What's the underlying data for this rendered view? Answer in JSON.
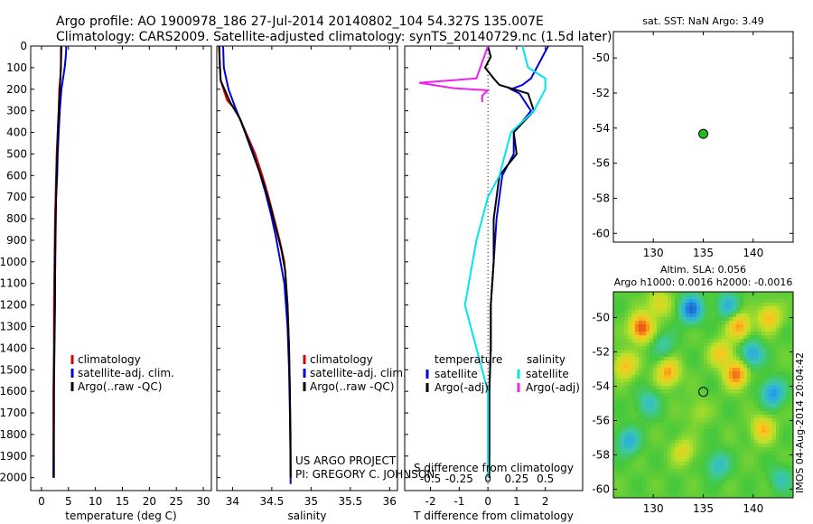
{
  "header": {
    "line1": "Argo profile: AO 1900978_186 27-Jul-2014 20140802_104 54.327S 135.007E",
    "line2": "Climatology: CARS2009. Satellite-adjusted climatology: synTS_20140729.nc (1.5d later)"
  },
  "side_stamp": "IMOS 04-Aug-2014 20:04:42",
  "credit": {
    "line1": "US ARGO PROJECT",
    "line2": "PI: GREGORY C. JOHNSON"
  },
  "colors": {
    "red": "#dd0000",
    "blue": "#0000dd",
    "black": "#000000",
    "cyan": "#00e5ee",
    "magenta": "#ee22ee",
    "green_dot": "#22bb22"
  },
  "chart_data": [
    {
      "id": "temperature",
      "type": "line",
      "xlabel": "temperature (deg C)",
      "ylabel": "",
      "xlim": [
        -2,
        31.5
      ],
      "ylim": [
        2060,
        0
      ],
      "xticks": [
        0,
        5,
        10,
        15,
        20,
        25,
        30
      ],
      "yticks": [
        0,
        100,
        200,
        300,
        400,
        500,
        600,
        700,
        800,
        900,
        1000,
        1100,
        1200,
        1300,
        1400,
        1500,
        1600,
        1700,
        1800,
        1900,
        2000
      ],
      "legend": {
        "placement": "lower-middle",
        "entries": [
          {
            "label": "climatology",
            "color": "#dd0000"
          },
          {
            "label": "satellite-adj. clim.",
            "color": "#0000dd"
          },
          {
            "label": "Argo(..raw -QC)",
            "color": "#000000"
          }
        ]
      },
      "series": [
        {
          "name": "climatology",
          "color": "#dd0000",
          "x": [
            3.6,
            3.6,
            3.5,
            3.3,
            3.2,
            3.0,
            2.8,
            2.7,
            2.6,
            2.5,
            2.4,
            2.3,
            2.3,
            2.2,
            2.2,
            2.2
          ],
          "y": [
            0,
            100,
            150,
            200,
            300,
            400,
            500,
            600,
            700,
            800,
            1000,
            1200,
            1400,
            1600,
            1800,
            2000
          ]
        },
        {
          "name": "satellite-adj. clim.",
          "color": "#0000dd",
          "x": [
            4.6,
            4.5,
            4.3,
            4.0,
            3.7,
            3.4,
            3.2,
            3.0,
            2.9,
            2.7,
            2.6,
            2.5,
            2.4,
            2.3,
            2.3,
            2.2
          ],
          "y": [
            0,
            50,
            100,
            150,
            200,
            300,
            400,
            500,
            600,
            700,
            900,
            1100,
            1300,
            1500,
            1700,
            2000
          ]
        },
        {
          "name": "Argo(..raw -QC)",
          "color": "#000000",
          "x": [
            3.7,
            3.6,
            3.5,
            3.4,
            3.3,
            3.2,
            3.0,
            2.9,
            2.8,
            2.7,
            2.6,
            2.5,
            2.5,
            2.4,
            2.3,
            2.3,
            2.3
          ],
          "y": [
            0,
            100,
            150,
            200,
            250,
            300,
            400,
            500,
            600,
            700,
            800,
            1000,
            1200,
            1400,
            1600,
            1800,
            2000
          ]
        }
      ]
    },
    {
      "id": "salinity",
      "type": "line",
      "xlabel": "salinity",
      "ylabel": "",
      "xlim": [
        33.8,
        36.1
      ],
      "ylim": [
        2060,
        0
      ],
      "xticks": [
        34,
        34.5,
        35,
        35.5,
        36
      ],
      "xtick_labels": [
        "34",
        "34.5",
        "35",
        "35.5",
        "36"
      ],
      "legend": {
        "placement": "lower-middle",
        "entries": [
          {
            "label": "climatology",
            "color": "#dd0000"
          },
          {
            "label": "satellite-adj. clim.",
            "color": "#0000dd"
          },
          {
            "label": "Argo(..raw -QC)",
            "color": "#000000"
          }
        ]
      },
      "series": [
        {
          "name": "climatology",
          "color": "#dd0000",
          "x": [
            33.83,
            33.84,
            33.85,
            33.93,
            34.05,
            34.17,
            34.29,
            34.38,
            34.46,
            34.53,
            34.6,
            34.66,
            34.7,
            34.72,
            34.73,
            34.74,
            34.74
          ],
          "y": [
            0,
            100,
            160,
            250,
            300,
            400,
            500,
            600,
            700,
            800,
            900,
            1000,
            1200,
            1400,
            1600,
            1800,
            2000
          ]
        },
        {
          "name": "satellite-adj. clim.",
          "color": "#0000dd",
          "x": [
            33.88,
            33.89,
            33.95,
            34.03,
            34.14,
            34.25,
            34.34,
            34.42,
            34.49,
            34.55,
            34.6,
            34.66,
            34.7,
            34.72,
            34.73,
            34.74,
            34.74
          ],
          "y": [
            0,
            100,
            200,
            280,
            380,
            480,
            580,
            680,
            780,
            880,
            980,
            1100,
            1300,
            1500,
            1700,
            1900,
            2030
          ]
        },
        {
          "name": "Argo(..raw -QC)",
          "color": "#000000",
          "x": [
            33.83,
            33.84,
            33.85,
            33.97,
            34.1,
            34.2,
            34.3,
            34.4,
            34.48,
            34.55,
            34.62,
            34.67,
            34.7,
            34.72,
            34.73,
            34.74
          ],
          "y": [
            0,
            100,
            160,
            260,
            340,
            440,
            540,
            640,
            740,
            840,
            940,
            1040,
            1200,
            1400,
            1600,
            2000
          ]
        }
      ]
    },
    {
      "id": "difference",
      "type": "line",
      "xlabel": "T difference from climatology",
      "x2label": "S difference from climatology",
      "xlim": [
        -2.9,
        3.3
      ],
      "ylim": [
        2060,
        0
      ],
      "xticks": [
        -2,
        -1,
        0,
        1,
        2
      ],
      "x2ticks": [
        -0.5,
        -0.25,
        0,
        0.25,
        0.5
      ],
      "x2tick_labels": [
        "-0.5",
        "-0.25",
        "0",
        "0.25",
        "0.5"
      ],
      "legend": {
        "placement": "lower-right",
        "temperature_title": "temperature",
        "salinity_title": "salinity",
        "entries": [
          {
            "label": "satellite",
            "color": "#0000dd"
          },
          {
            "label": "Argo(-adj)",
            "color": "#000000"
          },
          {
            "label": "satellite",
            "color": "#00e5ee"
          },
          {
            "label": "Argo(-adj)",
            "color": "#ee22ee"
          }
        ]
      },
      "series": [
        {
          "name": "T satellite",
          "color": "#0000dd",
          "x": [
            2.1,
            1.9,
            1.7,
            1.5,
            1.2,
            0.8,
            1.1,
            1.5,
            0.9,
            0.9,
            0.5,
            0.3,
            0.2,
            0.1,
            0.1,
            0.05,
            0.05,
            0.05,
            0.03,
            0.03
          ],
          "y": [
            0,
            50,
            100,
            150,
            180,
            200,
            220,
            300,
            400,
            500,
            600,
            800,
            1000,
            1200,
            1400,
            1600,
            1800,
            1900,
            1950,
            2000
          ]
        },
        {
          "name": "T Argo(-adj)",
          "color": "#000000",
          "x": [
            0,
            0.1,
            -0.1,
            0.2,
            0.4,
            1.4,
            1.6,
            0.9,
            1.0,
            0.4,
            0.3,
            0.2,
            0.2,
            0.1,
            0.1,
            0.05,
            0.05,
            0.05,
            0.05
          ],
          "y": [
            0,
            50,
            100,
            150,
            180,
            220,
            300,
            400,
            500,
            600,
            700,
            800,
            1000,
            1200,
            1400,
            1600,
            1800,
            1950,
            2000
          ]
        },
        {
          "name": "S satellite",
          "color": "#00e5ee",
          "x": [
            0.3,
            0.35,
            0.5,
            0.5,
            0.4,
            0.2,
            0.15,
            0.1,
            0.0,
            -0.05,
            -0.1,
            -0.2,
            -0.1,
            0,
            0,
            0,
            0,
            0
          ],
          "y": [
            0,
            100,
            150,
            200,
            300,
            400,
            500,
            600,
            700,
            800,
            900,
            1200,
            1400,
            1600,
            1800,
            1900,
            1950,
            2000
          ]
        },
        {
          "name": "S Argo(-adj)",
          "color": "#ee22ee",
          "x": [
            0,
            -0.1,
            -0.6,
            -0.3,
            0,
            -0.05,
            -0.05
          ],
          "y": [
            0,
            150,
            170,
            195,
            205,
            230,
            260
          ]
        }
      ]
    },
    {
      "id": "sst_location",
      "type": "scatter",
      "title": "sat. SST: NaN Argo: 3.49",
      "xlim": [
        126,
        144
      ],
      "ylim": [
        -60.5,
        -48.5
      ],
      "xticks": [
        130,
        135,
        140
      ],
      "yticks": [
        -50,
        -52,
        -54,
        -56,
        -58,
        -60
      ],
      "points": [
        {
          "x": 135.007,
          "y": -54.327,
          "color": "#22bb22"
        }
      ]
    },
    {
      "id": "sla_map",
      "type": "heatmap",
      "title": "Altim. SLA: 0.056",
      "subtitle": "Argo h1000: 0.0016 h2000: -0.0016",
      "xlim": [
        126,
        144
      ],
      "ylim": [
        -60.5,
        -48.5
      ],
      "xticks": [
        130,
        135,
        140
      ],
      "yticks": [
        -50,
        -52,
        -54,
        -56,
        -58,
        -60
      ],
      "marker": {
        "x": 135.007,
        "y": -54.327
      },
      "blobs": [
        {
          "x": 128.8,
          "y": -50.6,
          "v": 1.0
        },
        {
          "x": 127.2,
          "y": -52.8,
          "v": 0.6
        },
        {
          "x": 131.5,
          "y": -53.2,
          "v": 0.7
        },
        {
          "x": 130.6,
          "y": -49.2,
          "v": 0.45
        },
        {
          "x": 138.6,
          "y": -50.5,
          "v": 0.7
        },
        {
          "x": 141.6,
          "y": -50.0,
          "v": 0.6
        },
        {
          "x": 136.8,
          "y": -52.1,
          "v": 0.55
        },
        {
          "x": 141.0,
          "y": -56.5,
          "v": 0.6
        },
        {
          "x": 138.3,
          "y": -53.3,
          "v": 0.85
        },
        {
          "x": 133.0,
          "y": -57.8,
          "v": 0.4
        },
        {
          "x": 133.8,
          "y": -49.5,
          "v": -0.9
        },
        {
          "x": 137.5,
          "y": -49.3,
          "v": -0.5
        },
        {
          "x": 127.5,
          "y": -57.2,
          "v": -0.55
        },
        {
          "x": 129.5,
          "y": -55.0,
          "v": -0.4
        },
        {
          "x": 142.0,
          "y": -54.4,
          "v": -0.7
        },
        {
          "x": 139.9,
          "y": -52.1,
          "v": -0.6
        },
        {
          "x": 136.5,
          "y": -58.6,
          "v": -0.45
        },
        {
          "x": 131.0,
          "y": -51.6,
          "v": -0.3
        },
        {
          "x": 142.8,
          "y": -59.4,
          "v": -0.35
        },
        {
          "x": 134.5,
          "y": -55.5,
          "v": 0.2
        }
      ]
    }
  ]
}
